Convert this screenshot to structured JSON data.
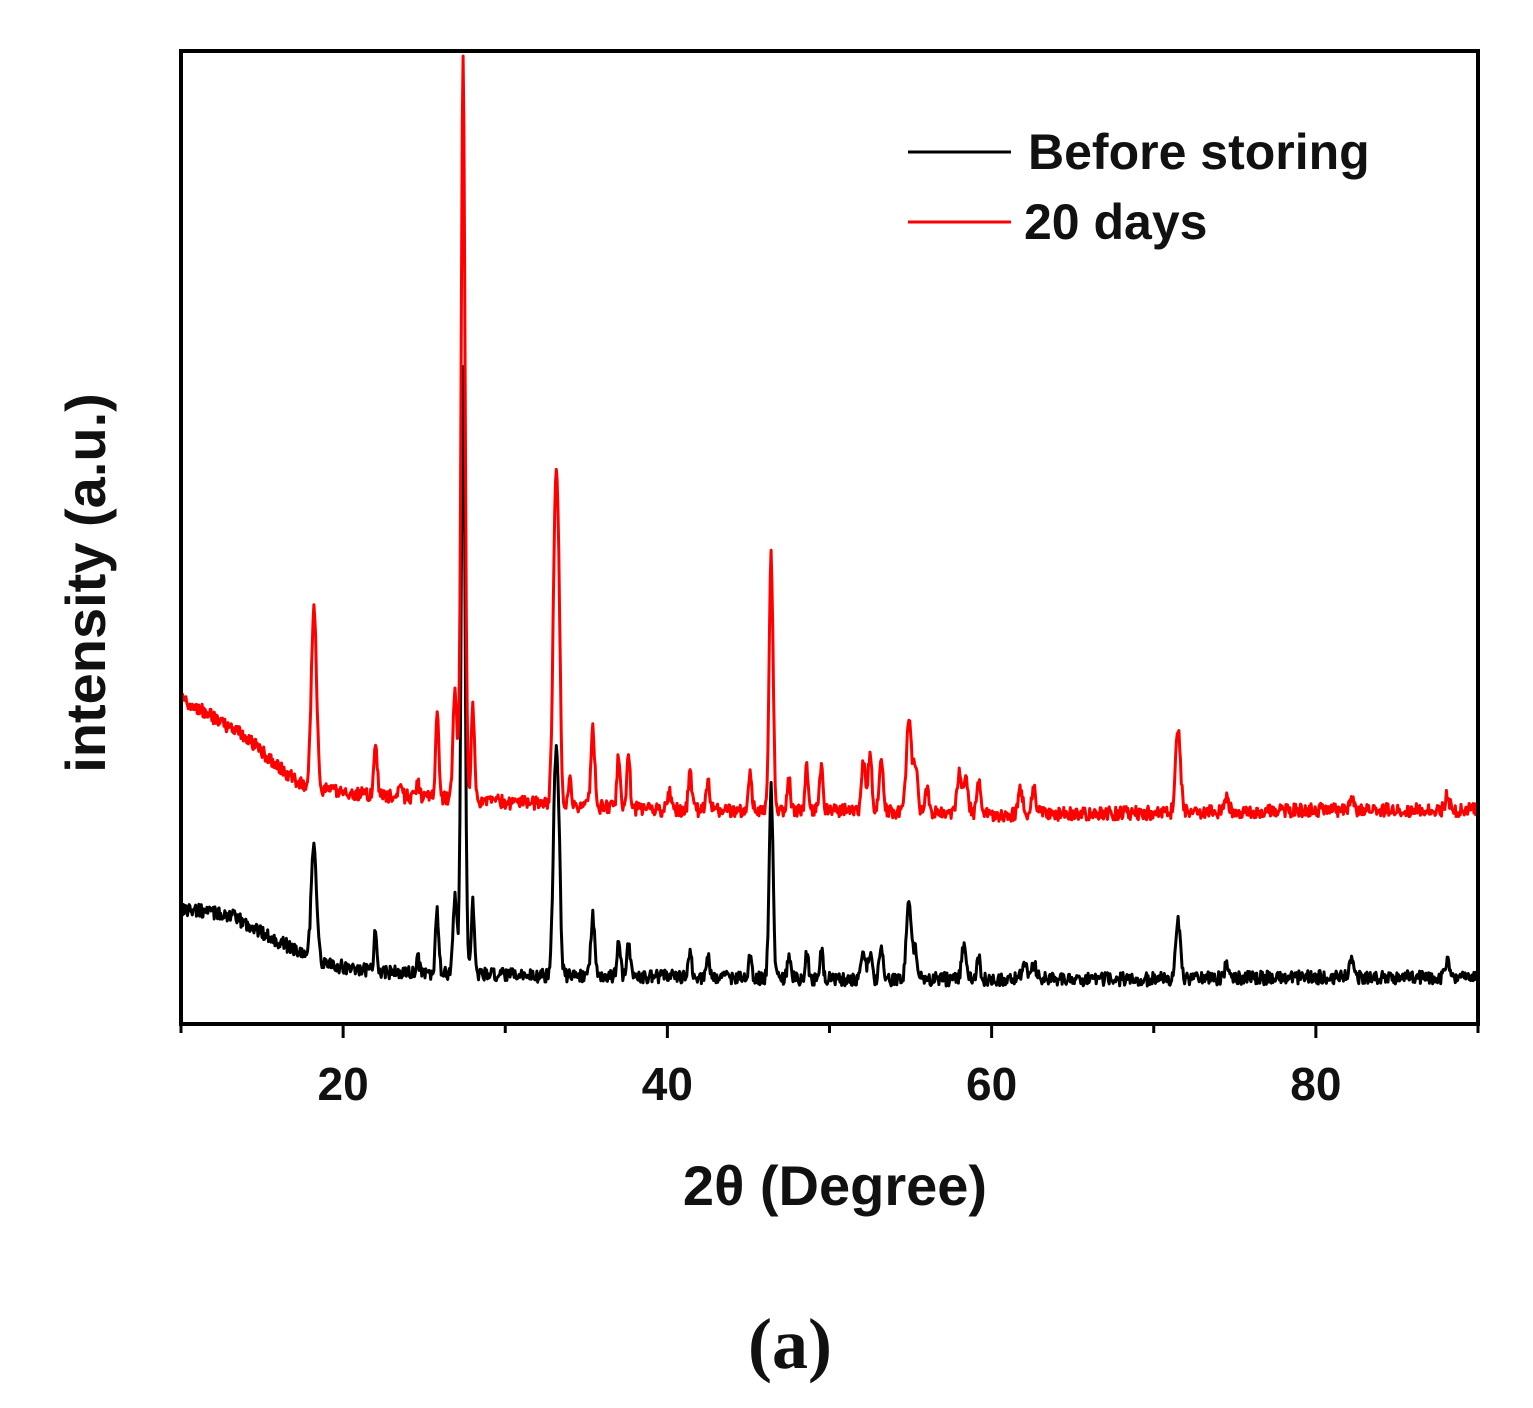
{
  "chart_data": {
    "type": "line",
    "title": "",
    "caption": "(a)",
    "xlabel": "2θ (Degree)",
    "ylabel": "intensity (a.u.)",
    "xlim": [
      10,
      90
    ],
    "ylim": [
      0,
      100
    ],
    "x_ticks": [
      20,
      40,
      60,
      80
    ],
    "x_tick_labels": [
      "20",
      "40",
      "60",
      "80"
    ],
    "y_ticks_shown": false,
    "legend_position": "top-right",
    "series": [
      {
        "name": "Before storing",
        "color": "#000000",
        "baseline": [
          [
            10,
            11.9
          ],
          [
            13,
            11.2
          ],
          [
            16,
            8.5
          ],
          [
            19,
            6.1
          ],
          [
            22,
            5.4
          ],
          [
            25,
            5.2
          ],
          [
            30,
            5.0
          ],
          [
            40,
            4.9
          ],
          [
            50,
            4.6
          ],
          [
            60,
            4.6
          ],
          [
            70,
            4.6
          ],
          [
            80,
            4.8
          ],
          [
            90,
            4.8
          ]
        ],
        "noise": 0.7,
        "peaks": [
          {
            "x": 18.2,
            "height": 12.0,
            "width": 0.16
          },
          {
            "x": 22.0,
            "height": 4.0,
            "width": 0.1
          },
          {
            "x": 24.6,
            "height": 1.5,
            "width": 0.1
          },
          {
            "x": 25.8,
            "height": 6.2,
            "width": 0.1
          },
          {
            "x": 26.9,
            "height": 7.8,
            "width": 0.12
          },
          {
            "x": 27.4,
            "height": 63.0,
            "width": 0.12
          },
          {
            "x": 28.0,
            "height": 7.5,
            "width": 0.1
          },
          {
            "x": 33.1,
            "height": 20.5,
            "width": 0.15
          },
          {
            "x": 33.3,
            "height": 9.0,
            "width": 0.12
          },
          {
            "x": 35.4,
            "height": 6.2,
            "width": 0.12
          },
          {
            "x": 37.0,
            "height": 3.5,
            "width": 0.1
          },
          {
            "x": 37.6,
            "height": 3.5,
            "width": 0.1
          },
          {
            "x": 41.4,
            "height": 2.5,
            "width": 0.1
          },
          {
            "x": 42.5,
            "height": 2.0,
            "width": 0.1
          },
          {
            "x": 45.1,
            "height": 2.5,
            "width": 0.1
          },
          {
            "x": 46.4,
            "height": 19.5,
            "width": 0.12
          },
          {
            "x": 47.5,
            "height": 2.0,
            "width": 0.1
          },
          {
            "x": 48.6,
            "height": 2.5,
            "width": 0.1
          },
          {
            "x": 49.5,
            "height": 3.0,
            "width": 0.1
          },
          {
            "x": 52.1,
            "height": 2.8,
            "width": 0.12
          },
          {
            "x": 52.5,
            "height": 2.8,
            "width": 0.12
          },
          {
            "x": 53.2,
            "height": 3.0,
            "width": 0.12
          },
          {
            "x": 54.9,
            "height": 8.0,
            "width": 0.15
          },
          {
            "x": 55.3,
            "height": 3.0,
            "width": 0.12
          },
          {
            "x": 58.3,
            "height": 3.2,
            "width": 0.15
          },
          {
            "x": 59.2,
            "height": 2.0,
            "width": 0.12
          },
          {
            "x": 62.0,
            "height": 1.5,
            "width": 0.15
          },
          {
            "x": 62.6,
            "height": 1.5,
            "width": 0.15
          },
          {
            "x": 71.5,
            "height": 5.8,
            "width": 0.15
          },
          {
            "x": 74.5,
            "height": 1.5,
            "width": 0.12
          },
          {
            "x": 82.2,
            "height": 1.5,
            "width": 0.12
          },
          {
            "x": 88.1,
            "height": 1.5,
            "width": 0.12
          }
        ]
      },
      {
        "name": "20 days",
        "color": "#ff0000",
        "baseline": [
          [
            10,
            33.5
          ],
          [
            12,
            31.5
          ],
          [
            14,
            29.5
          ],
          [
            16,
            26.5
          ],
          [
            17.5,
            24.5
          ],
          [
            19,
            24.0
          ],
          [
            22,
            23.5
          ],
          [
            25,
            23.3
          ],
          [
            30,
            22.8
          ],
          [
            40,
            22.0
          ],
          [
            50,
            22.0
          ],
          [
            60,
            21.5
          ],
          [
            70,
            21.7
          ],
          [
            80,
            22.0
          ],
          [
            90,
            22.0
          ]
        ],
        "noise": 0.7,
        "peaks": [
          {
            "x": 18.2,
            "height": 18.5,
            "width": 0.16
          },
          {
            "x": 22.0,
            "height": 5.5,
            "width": 0.1
          },
          {
            "x": 23.5,
            "height": 1.5,
            "width": 0.1
          },
          {
            "x": 24.6,
            "height": 1.5,
            "width": 0.1
          },
          {
            "x": 25.8,
            "height": 8.5,
            "width": 0.1
          },
          {
            "x": 26.9,
            "height": 11.5,
            "width": 0.12
          },
          {
            "x": 27.4,
            "height": 76.0,
            "width": 0.12
          },
          {
            "x": 28.0,
            "height": 10.0,
            "width": 0.1
          },
          {
            "x": 33.1,
            "height": 30.5,
            "width": 0.15
          },
          {
            "x": 33.3,
            "height": 13.0,
            "width": 0.12
          },
          {
            "x": 34.0,
            "height": 2.5,
            "width": 0.1
          },
          {
            "x": 35.4,
            "height": 8.0,
            "width": 0.12
          },
          {
            "x": 37.0,
            "height": 5.5,
            "width": 0.1
          },
          {
            "x": 37.6,
            "height": 5.5,
            "width": 0.1
          },
          {
            "x": 40.1,
            "height": 2.0,
            "width": 0.1
          },
          {
            "x": 41.4,
            "height": 4.0,
            "width": 0.1
          },
          {
            "x": 42.5,
            "height": 3.0,
            "width": 0.1
          },
          {
            "x": 45.1,
            "height": 3.5,
            "width": 0.1
          },
          {
            "x": 46.4,
            "height": 26.0,
            "width": 0.12
          },
          {
            "x": 47.5,
            "height": 3.0,
            "width": 0.1
          },
          {
            "x": 48.6,
            "height": 4.5,
            "width": 0.1
          },
          {
            "x": 49.5,
            "height": 4.5,
            "width": 0.1
          },
          {
            "x": 52.1,
            "height": 5.0,
            "width": 0.12
          },
          {
            "x": 52.5,
            "height": 5.5,
            "width": 0.12
          },
          {
            "x": 53.2,
            "height": 5.0,
            "width": 0.12
          },
          {
            "x": 54.9,
            "height": 10.0,
            "width": 0.15
          },
          {
            "x": 55.3,
            "height": 5.0,
            "width": 0.12
          },
          {
            "x": 56.0,
            "height": 2.5,
            "width": 0.12
          },
          {
            "x": 58.0,
            "height": 4.0,
            "width": 0.15
          },
          {
            "x": 58.4,
            "height": 3.5,
            "width": 0.15
          },
          {
            "x": 59.2,
            "height": 3.5,
            "width": 0.12
          },
          {
            "x": 61.8,
            "height": 2.5,
            "width": 0.15
          },
          {
            "x": 62.6,
            "height": 2.5,
            "width": 0.15
          },
          {
            "x": 71.5,
            "height": 8.5,
            "width": 0.15
          },
          {
            "x": 74.5,
            "height": 1.5,
            "width": 0.12
          },
          {
            "x": 82.2,
            "height": 1.5,
            "width": 0.12
          },
          {
            "x": 88.1,
            "height": 1.5,
            "width": 0.12
          }
        ]
      }
    ]
  }
}
